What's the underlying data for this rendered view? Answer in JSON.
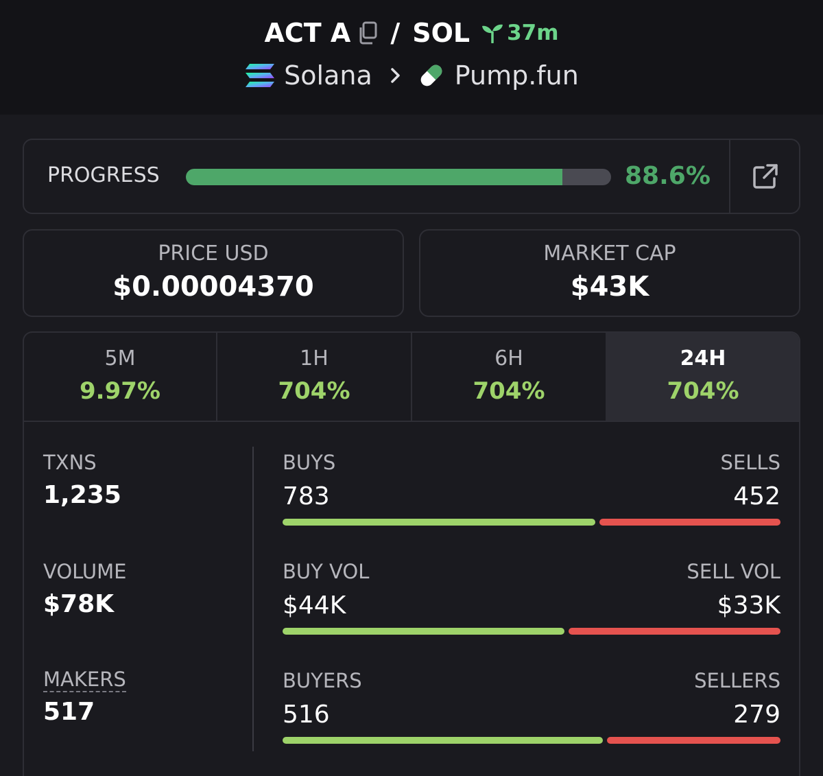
{
  "header": {
    "token": "ACT A",
    "separator": "/",
    "quote": "SOL",
    "age": "37m",
    "chain": "Solana",
    "dex": "Pump.fun"
  },
  "progress": {
    "label": "PROGRESS",
    "value_text": "88.6%",
    "percent": 88.6
  },
  "stats": {
    "price": {
      "label": "PRICE USD",
      "value": "$0.00004370"
    },
    "mcap": {
      "label": "MARKET CAP",
      "value": "$43K"
    }
  },
  "tabs": [
    {
      "label": "5M",
      "value": "9.97%"
    },
    {
      "label": "1H",
      "value": "704%"
    },
    {
      "label": "6H",
      "value": "704%"
    },
    {
      "label": "24H",
      "value": "704%",
      "active": true
    }
  ],
  "metrics": {
    "txns": {
      "label": "TXNS",
      "value": "1,235"
    },
    "volume": {
      "label": "VOLUME",
      "value": "$78K"
    },
    "makers": {
      "label": "MAKERS",
      "value": "517"
    }
  },
  "ratios": {
    "trades": {
      "left_label": "BUYS",
      "right_label": "SELLS",
      "left_value": "783",
      "right_value": "452",
      "left_amount": 783,
      "right_amount": 452
    },
    "volume": {
      "left_label": "BUY VOL",
      "right_label": "SELL VOL",
      "left_value": "$44K",
      "right_value": "$33K",
      "left_amount": 44,
      "right_amount": 33
    },
    "traders": {
      "left_label": "BUYERS",
      "right_label": "SELLERS",
      "left_value": "516",
      "right_value": "279",
      "left_amount": 516,
      "right_amount": 279
    }
  },
  "colors": {
    "accent_green": "#4ea769",
    "buy_green": "#9ed36a",
    "sell_red": "#e5534f"
  }
}
